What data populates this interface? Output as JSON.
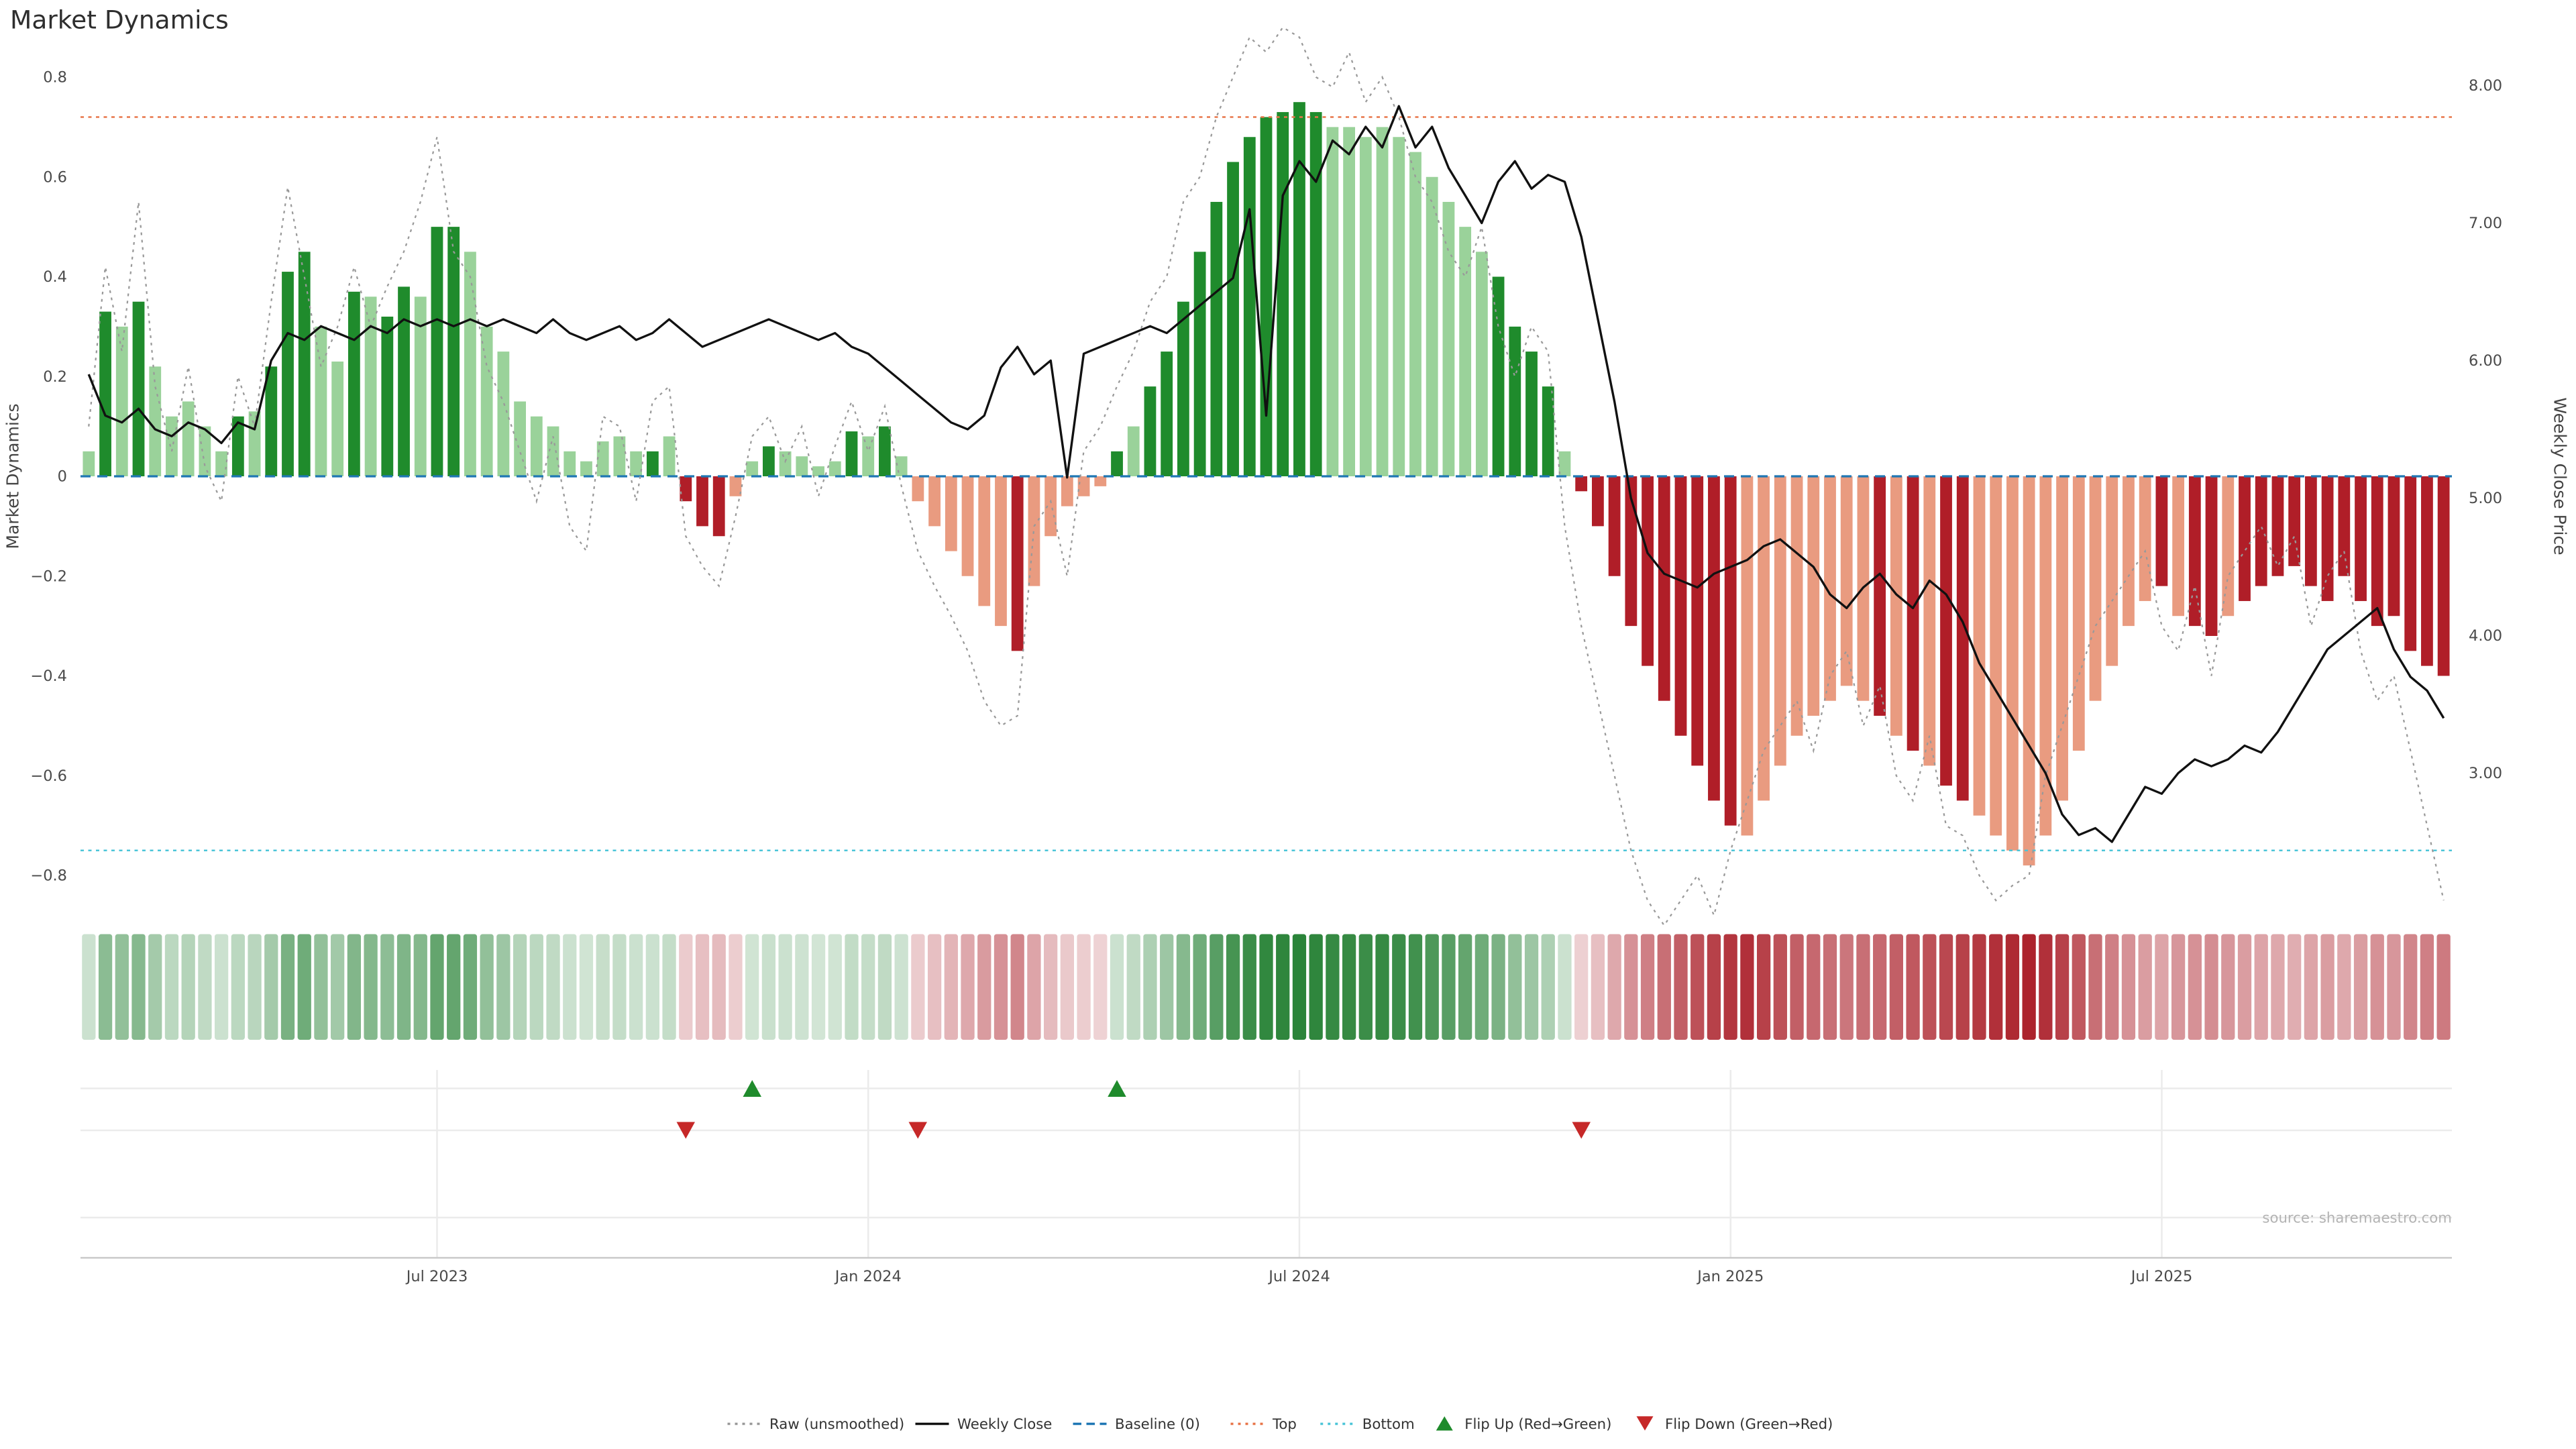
{
  "title": "Market Dynamics",
  "source_note": "source: sharemaestro.com",
  "left_axis": {
    "label": "Market Dynamics",
    "ticks": [
      0.8,
      0.6,
      0.4,
      0.2,
      0,
      -0.2,
      -0.4,
      -0.6,
      -0.8
    ]
  },
  "right_axis": {
    "label": "Weekly Close Price",
    "ticks": [
      8,
      7,
      6,
      5,
      4,
      3
    ]
  },
  "legend": [
    {
      "label": "Raw (unsmoothed)",
      "type": "dotted",
      "color": "#999999"
    },
    {
      "label": "Weekly Close",
      "type": "solid",
      "color": "#111111"
    },
    {
      "label": "Baseline (0)",
      "type": "dashed",
      "color": "#1f77b4"
    },
    {
      "label": "Top",
      "type": "dotted",
      "color": "#e8764a"
    },
    {
      "label": "Bottom",
      "type": "dotted",
      "color": "#4cc5d8"
    },
    {
      "label": "Flip Up (Red→Green)",
      "type": "tri-up",
      "color": "#1f8b2c"
    },
    {
      "label": "Flip Down (Green→Red)",
      "type": "tri-down",
      "color": "#c62828"
    }
  ],
  "colors": {
    "bar_green_dark": "#1f8b2c",
    "bar_green_light": "#9ad29a",
    "bar_red_dark": "#b01e28",
    "bar_red_light": "#e99b80",
    "raw_line": "#999999",
    "close_line": "#111111",
    "baseline_line": "#1f77b4",
    "top_line": "#e8764a",
    "bottom_line": "#4cc5d8",
    "flip_up": "#1f8b2c",
    "flip_down": "#c62828",
    "grid": "#ebebeb",
    "spine": "#c9c9c9"
  },
  "chart_data": {
    "type": "bar+line",
    "title": "Market Dynamics",
    "ylabel_left": "Market Dynamics",
    "ylabel_right": "Weekly Close Price",
    "ylim_left": [
      -0.8,
      0.8
    ],
    "ylim_right": [
      3,
      8
    ],
    "baseline": 0,
    "top_threshold": 0.72,
    "bottom_threshold": -0.75,
    "x_tick_labels": [
      "Jul 2023",
      "Jan 2024",
      "Jul 2024",
      "Jan 2025",
      "Jul 2025"
    ],
    "x_tick_weeks": [
      21,
      47,
      73,
      99,
      125
    ],
    "flip_up_weeks": [
      40,
      62
    ],
    "flip_down_weeks": [
      36,
      50,
      90
    ],
    "dynamics": [
      0.05,
      0.33,
      0.3,
      0.35,
      0.22,
      0.12,
      0.15,
      0.1,
      0.05,
      0.12,
      0.13,
      0.22,
      0.41,
      0.45,
      0.3,
      0.23,
      0.37,
      0.36,
      0.32,
      0.38,
      0.36,
      0.5,
      0.5,
      0.45,
      0.3,
      0.25,
      0.15,
      0.12,
      0.1,
      0.05,
      0.03,
      0.07,
      0.08,
      0.05,
      0.05,
      0.08,
      -0.05,
      -0.1,
      -0.12,
      -0.04,
      0.03,
      0.06,
      0.05,
      0.04,
      0.02,
      0.03,
      0.09,
      0.08,
      0.1,
      0.04,
      -0.05,
      -0.1,
      -0.15,
      -0.2,
      -0.26,
      -0.3,
      -0.35,
      -0.22,
      -0.12,
      -0.06,
      -0.04,
      -0.02,
      0.05,
      0.1,
      0.18,
      0.25,
      0.35,
      0.45,
      0.55,
      0.63,
      0.68,
      0.72,
      0.73,
      0.75,
      0.73,
      0.7,
      0.7,
      0.68,
      0.7,
      0.68,
      0.65,
      0.6,
      0.55,
      0.5,
      0.45,
      0.4,
      0.3,
      0.25,
      0.18,
      0.05,
      -0.03,
      -0.1,
      -0.2,
      -0.3,
      -0.38,
      -0.45,
      -0.52,
      -0.58,
      -0.65,
      -0.7,
      -0.72,
      -0.65,
      -0.58,
      -0.52,
      -0.48,
      -0.45,
      -0.42,
      -0.45,
      -0.48,
      -0.52,
      -0.55,
      -0.58,
      -0.62,
      -0.65,
      -0.68,
      -0.72,
      -0.75,
      -0.78,
      -0.72,
      -0.65,
      -0.55,
      -0.45,
      -0.38,
      -0.3,
      -0.25,
      -0.22,
      -0.28,
      -0.3,
      -0.32,
      -0.28,
      -0.25,
      -0.22,
      -0.2,
      -0.18,
      -0.22,
      -0.25,
      -0.2,
      -0.25,
      -0.3,
      -0.28,
      -0.35,
      -0.38,
      -0.4
    ],
    "raw": [
      0.1,
      0.42,
      0.25,
      0.55,
      0.18,
      0.05,
      0.22,
      0.02,
      -0.05,
      0.2,
      0.1,
      0.35,
      0.58,
      0.4,
      0.22,
      0.3,
      0.42,
      0.3,
      0.38,
      0.45,
      0.55,
      0.68,
      0.45,
      0.4,
      0.22,
      0.15,
      0.05,
      -0.05,
      0.08,
      -0.1,
      -0.15,
      0.12,
      0.1,
      -0.05,
      0.15,
      0.18,
      -0.12,
      -0.18,
      -0.22,
      -0.08,
      0.08,
      0.12,
      0.03,
      0.1,
      -0.04,
      0.06,
      0.15,
      0.05,
      0.14,
      -0.02,
      -0.15,
      -0.22,
      -0.28,
      -0.35,
      -0.45,
      -0.5,
      -0.48,
      -0.1,
      -0.05,
      -0.2,
      0.05,
      0.1,
      0.18,
      0.25,
      0.35,
      0.4,
      0.55,
      0.6,
      0.72,
      0.8,
      0.88,
      0.85,
      0.9,
      0.88,
      0.8,
      0.78,
      0.85,
      0.75,
      0.8,
      0.72,
      0.6,
      0.55,
      0.45,
      0.4,
      0.5,
      0.3,
      0.2,
      0.3,
      0.25,
      -0.1,
      -0.3,
      -0.45,
      -0.6,
      -0.75,
      -0.85,
      -0.9,
      -0.85,
      -0.8,
      -0.88,
      -0.75,
      -0.65,
      -0.55,
      -0.5,
      -0.45,
      -0.55,
      -0.4,
      -0.35,
      -0.5,
      -0.42,
      -0.6,
      -0.65,
      -0.52,
      -0.7,
      -0.72,
      -0.8,
      -0.85,
      -0.82,
      -0.8,
      -0.6,
      -0.5,
      -0.4,
      -0.3,
      -0.25,
      -0.2,
      -0.15,
      -0.3,
      -0.35,
      -0.22,
      -0.4,
      -0.2,
      -0.15,
      -0.1,
      -0.18,
      -0.12,
      -0.3,
      -0.2,
      -0.15,
      -0.35,
      -0.45,
      -0.4,
      -0.55,
      -0.7,
      -0.85
    ],
    "close": [
      5.9,
      5.6,
      5.55,
      5.65,
      5.5,
      5.45,
      5.55,
      5.5,
      5.4,
      5.55,
      5.5,
      6.0,
      6.2,
      6.15,
      6.25,
      6.2,
      6.15,
      6.25,
      6.2,
      6.3,
      6.25,
      6.3,
      6.25,
      6.3,
      6.25,
      6.3,
      6.25,
      6.2,
      6.3,
      6.2,
      6.15,
      6.2,
      6.25,
      6.15,
      6.2,
      6.3,
      6.2,
      6.1,
      6.15,
      6.2,
      6.25,
      6.3,
      6.25,
      6.2,
      6.15,
      6.2,
      6.1,
      6.05,
      5.95,
      5.85,
      5.75,
      5.65,
      5.55,
      5.5,
      5.6,
      5.95,
      6.1,
      5.9,
      6.0,
      5.15,
      6.05,
      6.1,
      6.15,
      6.2,
      6.25,
      6.2,
      6.3,
      6.4,
      6.5,
      6.6,
      7.1,
      5.6,
      7.2,
      7.45,
      7.3,
      7.6,
      7.5,
      7.7,
      7.55,
      7.85,
      7.55,
      7.7,
      7.4,
      7.2,
      7.0,
      7.3,
      7.45,
      7.25,
      7.35,
      7.3,
      6.9,
      6.3,
      5.7,
      5.0,
      4.6,
      4.45,
      4.4,
      4.35,
      4.45,
      4.5,
      4.55,
      4.65,
      4.7,
      4.6,
      4.5,
      4.3,
      4.2,
      4.35,
      4.45,
      4.3,
      4.2,
      4.4,
      4.3,
      4.1,
      3.8,
      3.6,
      3.4,
      3.2,
      3.0,
      2.7,
      2.55,
      2.6,
      2.5,
      2.7,
      2.9,
      2.85,
      3.0,
      3.1,
      3.05,
      3.1,
      3.2,
      3.15,
      3.3,
      3.5,
      3.7,
      3.9,
      4.0,
      4.1,
      4.2,
      3.9,
      3.7,
      3.6,
      3.4
    ],
    "tone": [
      "ldldllllld",
      "ldddlldldd",
      "lddlllllll",
      "lllldldddl",
      "ldlllldldl",
      "lllllldlll",
      "lldldddddd",
      "dddddlllll",
      "lllllddddl",
      "dddddddddd",
      "lllllllldl",
      "dlddllllll",
      "llllldlddl",
      "dddddddddd",
      "ddd"
    ]
  }
}
